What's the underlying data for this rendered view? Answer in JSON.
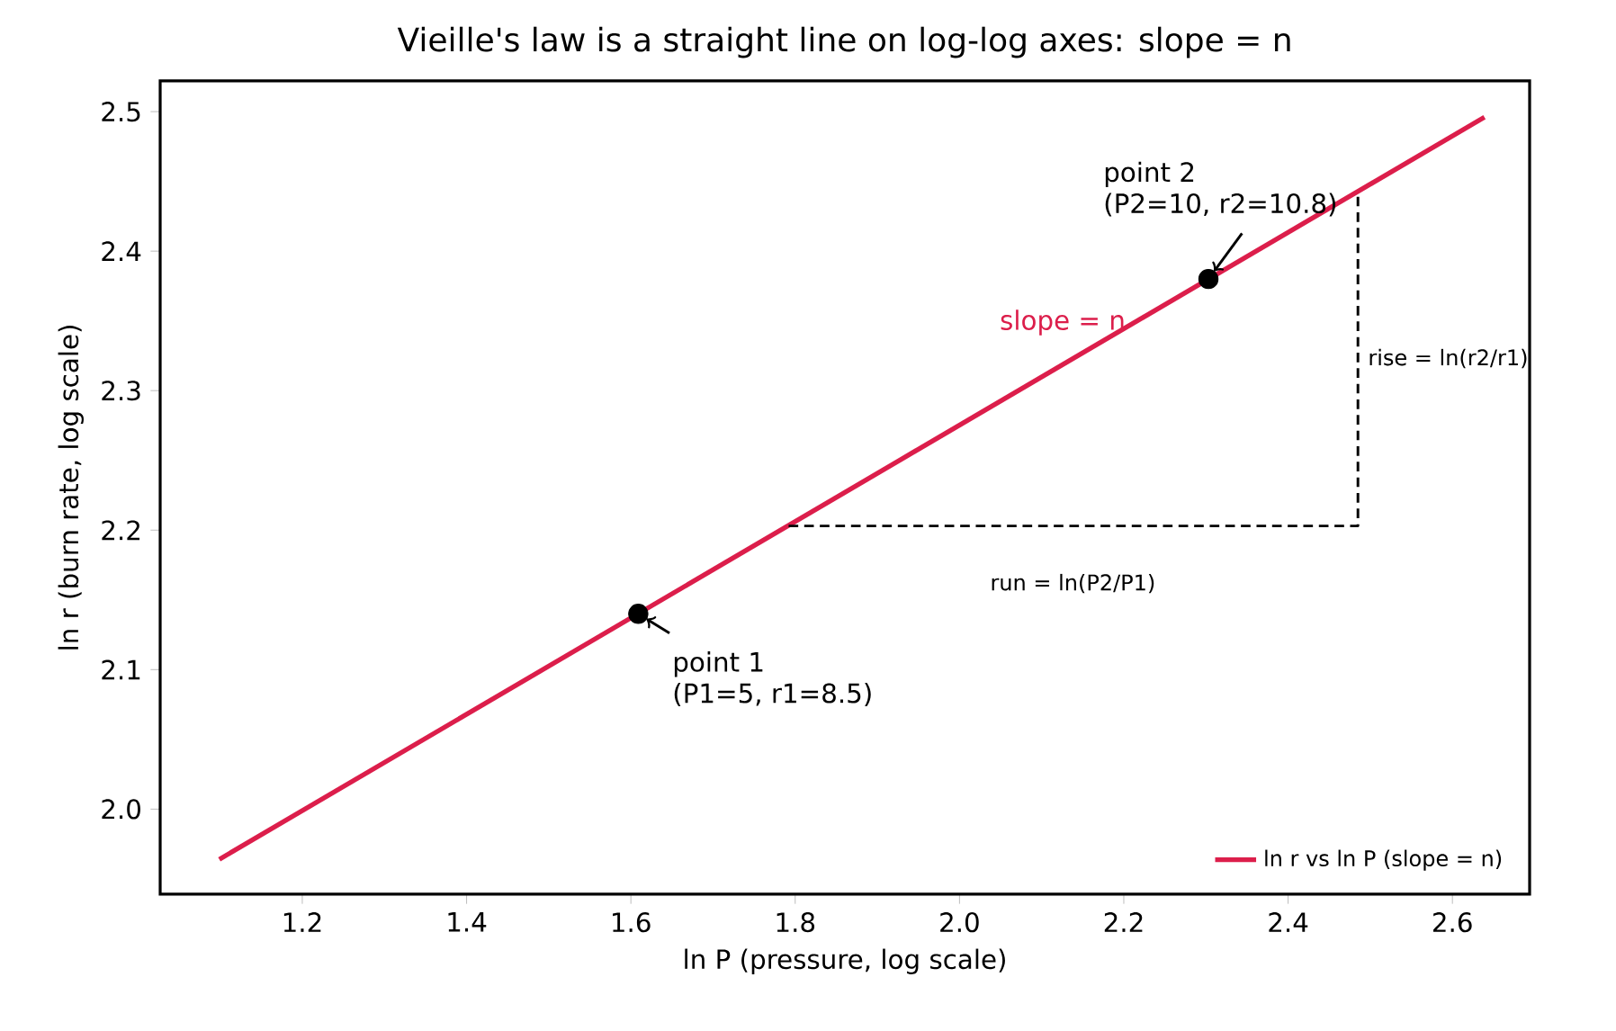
{
  "chart_data": {
    "type": "line",
    "title": "Vieille's law is a straight line on log-log axes: slope = n",
    "xlabel": "ln P  (pressure, log scale)",
    "ylabel": "ln r  (burn rate, log scale)",
    "xlim": [
      1.027,
      2.694
    ],
    "ylim": [
      1.939,
      2.522
    ],
    "xticks": [
      1.2,
      1.4,
      1.6,
      1.8,
      {
        "value": 2.0,
        "label": "2.0"
      },
      2.2,
      2.4,
      2.6
    ],
    "yticks": [
      {
        "value": 2.0,
        "label": "2.0"
      },
      2.1,
      2.2,
      2.3,
      2.4,
      2.5
    ],
    "grid": false,
    "legend": "bottom right",
    "series": [
      {
        "name": "ln r vs ln P (slope = n)",
        "color": "#dc1e4b",
        "x": [
          1.099,
          2.639
        ],
        "values": [
          1.964,
          2.496
        ]
      },
      {
        "type": "scatter",
        "color": "#000000",
        "marker": "circle",
        "x": [
          1.609,
          2.303
        ],
        "values": [
          2.14,
          2.38
        ]
      },
      {
        "type": "line",
        "color": "#000000",
        "line_style": "dashed",
        "x": [
          1.792,
          2.485,
          2.485
        ],
        "values": [
          2.203,
          2.203,
          2.443
        ]
      }
    ],
    "annotations": [
      {
        "text": "point 1",
        "x": 1.609,
        "y": 2.14
      },
      "(P1=5, r1=8.5)",
      "point 2",
      {
        "text": "(P2=10, r2=10.8)",
        "x": 2.303,
        "y": 2.38
      },
      "slope = n",
      {
        "text": "rise = ln(r2/r1)",
        "x": 2.485,
        "y": 2.323
      },
      {
        "text": "run = ln(P2/P1)",
        "x": 2.138,
        "y": 2.203
      }
    ]
  }
}
